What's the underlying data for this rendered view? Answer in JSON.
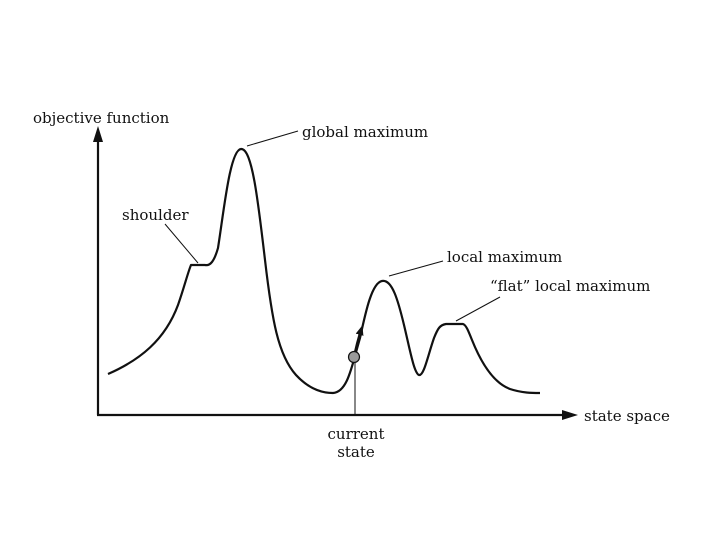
{
  "axes": {
    "y_label": "objective function",
    "x_label": "state space"
  },
  "annotations": {
    "global_maximum": "global maximum",
    "shoulder": "shoulder",
    "local_maximum": "local maximum",
    "flat_local_maximum": "“flat” local maximum",
    "current_state_line1": "current",
    "current_state_line2": "state"
  },
  "colors": {
    "ink": "#111111",
    "marker_fill": "#9a9a9a"
  }
}
